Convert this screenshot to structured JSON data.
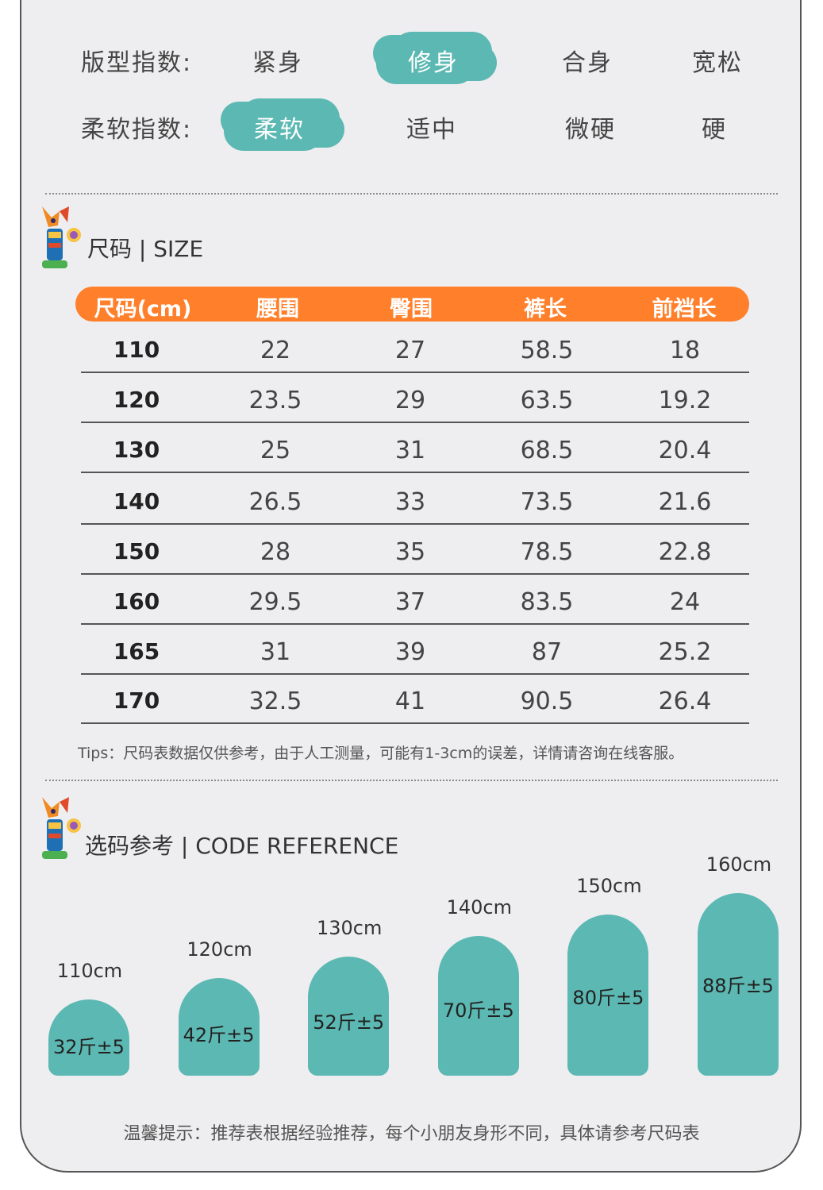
{
  "indices": {
    "fit": {
      "label": "版型指数:",
      "options": [
        "紧身",
        "修身",
        "合身",
        "宽松"
      ],
      "selected": "修身"
    },
    "softness": {
      "label": "柔软指数:",
      "options": [
        "柔软",
        "适中",
        "微硬",
        "硬"
      ],
      "selected": "柔软"
    }
  },
  "size_section": {
    "title": "尺码 | SIZE",
    "headers": [
      "尺码(cm)",
      "腰围",
      "臀围",
      "裤长",
      "前裆长"
    ],
    "rows": [
      [
        "110",
        "22",
        "27",
        "58.5",
        "18"
      ],
      [
        "120",
        "23.5",
        "29",
        "63.5",
        "19.2"
      ],
      [
        "130",
        "25",
        "31",
        "68.5",
        "20.4"
      ],
      [
        "140",
        "26.5",
        "33",
        "73.5",
        "21.6"
      ],
      [
        "150",
        "28",
        "35",
        "78.5",
        "22.8"
      ],
      [
        "160",
        "29.5",
        "37",
        "83.5",
        "24"
      ],
      [
        "165",
        "31",
        "39",
        "87",
        "25.2"
      ],
      [
        "170",
        "32.5",
        "41",
        "90.5",
        "26.4"
      ]
    ],
    "tips": "Tips：尺码表数据仅供参考，由于人工测量，可能有1-3cm的误差，详情请咨询在线客服。"
  },
  "code_reference": {
    "title": "选码参考 | CODE REFERENCE",
    "items": [
      {
        "height": "110cm",
        "weight": "32斤±5",
        "value": 110
      },
      {
        "height": "120cm",
        "weight": "42斤±5",
        "value": 120
      },
      {
        "height": "130cm",
        "weight": "52斤±5",
        "value": 130
      },
      {
        "height": "140cm",
        "weight": "70斤±5",
        "value": 140
      },
      {
        "height": "150cm",
        "weight": "80斤±5",
        "value": 150
      },
      {
        "height": "160cm",
        "weight": "88斤±5",
        "value": 160
      }
    ],
    "note": "温馨提示：推荐表根据经验推荐，每个小朋友身形不同，具体请参考尺码表"
  },
  "colors": {
    "accent_orange": "#ff7f2a",
    "teal": "#5cb8b2",
    "background": "#eeeef0"
  },
  "icons": {
    "mascot": "fox-mascot-icon"
  }
}
